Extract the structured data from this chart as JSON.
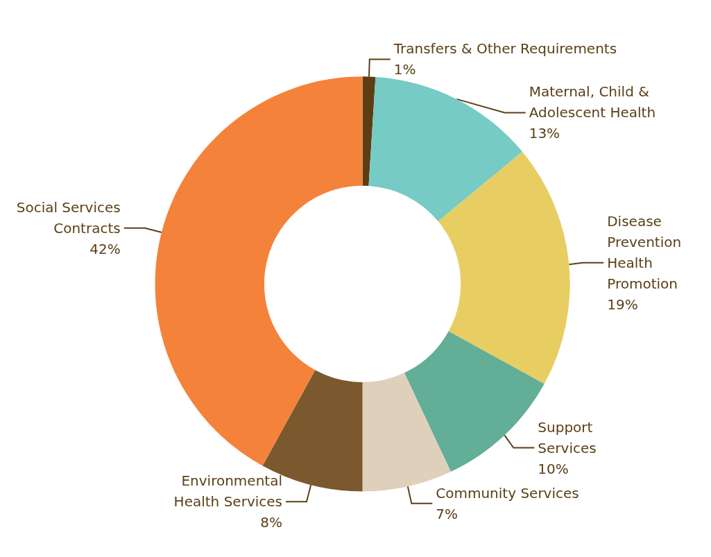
{
  "chart_data": {
    "type": "donut",
    "categories": [
      "Transfers & Other Requirements",
      "Maternal, Child &\nAdolescent Health",
      "Disease\nPrevention\nHealth\nPromotion",
      "Support\nServices",
      "Community Services",
      "Environmental\nHealth Services",
      "Social Services\nContracts"
    ],
    "values": [
      1,
      13,
      19,
      10,
      7,
      8,
      42
    ],
    "value_labels": [
      "1%",
      "13%",
      "19%",
      "10%",
      "7%",
      "8%",
      "42%"
    ],
    "colors": [
      "#5c3d14",
      "#76cbc4",
      "#e8cd63",
      "#62ae97",
      "#dfd0bb",
      "#7b582d",
      "#f4823a"
    ],
    "legend": false
  }
}
